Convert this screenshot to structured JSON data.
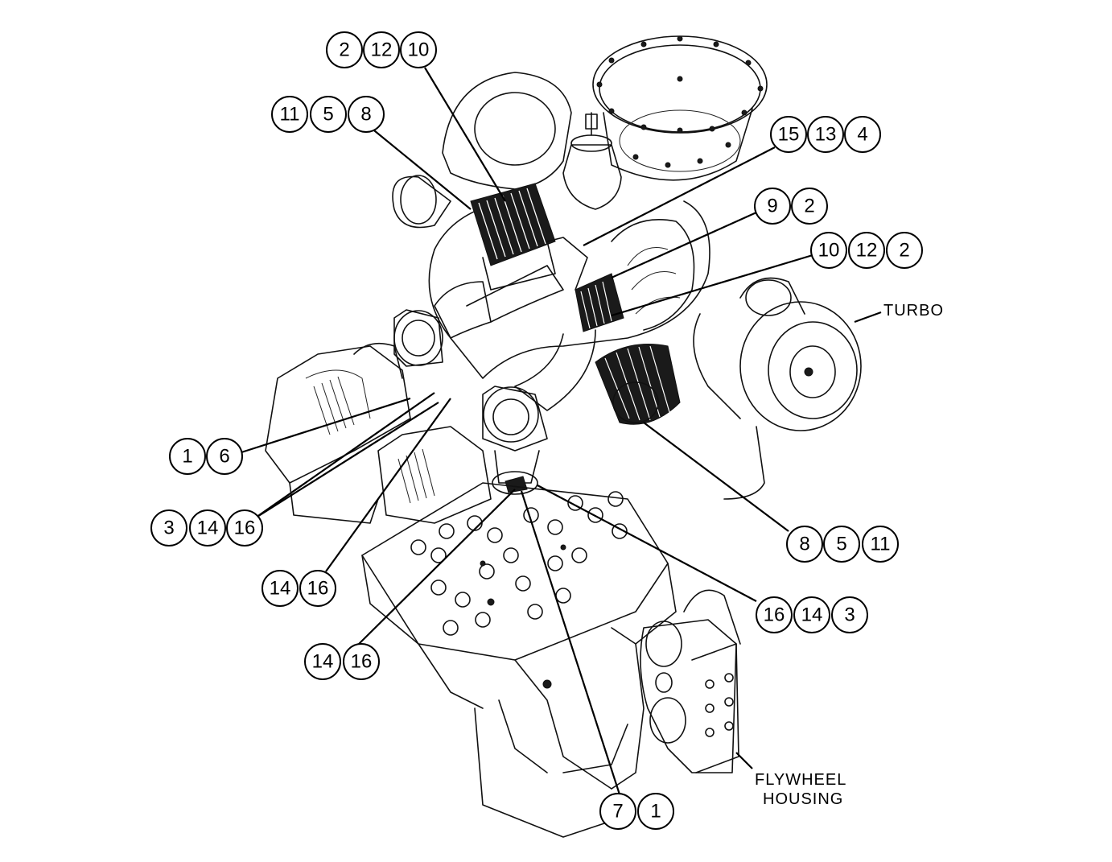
{
  "diagram": {
    "labels": {
      "turbo": "TURBO",
      "flywheel_line1": "FLYWHEEL",
      "flywheel_line2": "HOUSING"
    },
    "callouts": [
      [
        "2",
        "12",
        "10"
      ],
      [
        "11",
        "5",
        "8"
      ],
      [
        "15",
        "13",
        "4"
      ],
      [
        "9",
        "2"
      ],
      [
        "10",
        "12",
        "2"
      ],
      [
        "1",
        "6"
      ],
      [
        "3",
        "14",
        "16"
      ],
      [
        "8",
        "5",
        "11"
      ],
      [
        "14",
        "16"
      ],
      [
        "16",
        "14",
        "3"
      ],
      [
        "14",
        "16"
      ],
      [
        "7",
        "1"
      ]
    ]
  }
}
